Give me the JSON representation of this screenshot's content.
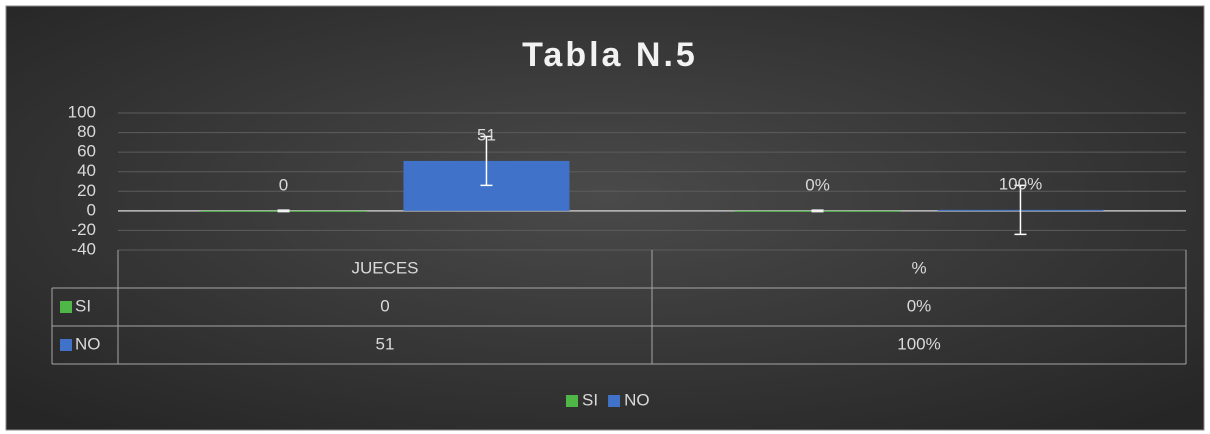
{
  "chart_data": {
    "type": "bar",
    "title": "Tabla N.5",
    "categories": [
      "JUECES",
      "%"
    ],
    "series": [
      {
        "name": "SI",
        "color": "#4fb748",
        "values": [
          0,
          0
        ],
        "value_labels": [
          "0",
          "0%"
        ]
      },
      {
        "name": "NO",
        "color": "#3f72c8",
        "values": [
          51,
          1
        ],
        "value_labels": [
          "51",
          "100%"
        ],
        "errors": [
          25,
          25
        ]
      }
    ],
    "ylim": [
      -40,
      100
    ],
    "yticks": [
      -40,
      -20,
      0,
      20,
      40,
      60,
      80,
      100
    ],
    "grid": true,
    "legend": "bottom"
  }
}
